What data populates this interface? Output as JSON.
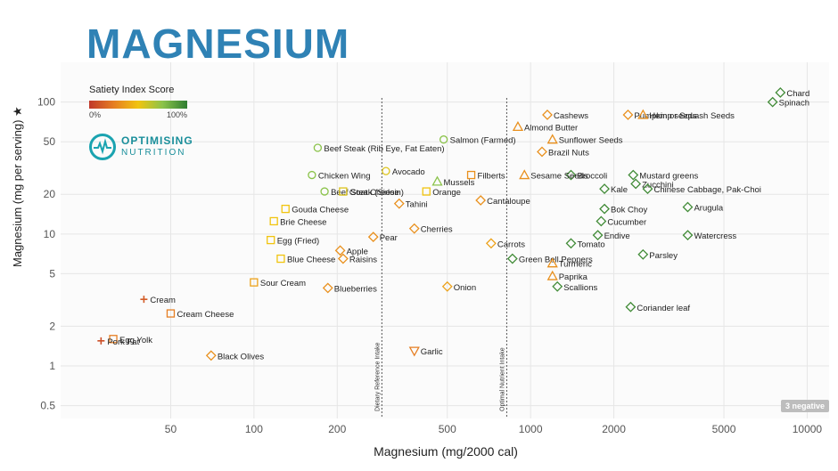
{
  "title": "MAGNESIUM",
  "legend": {
    "title": "Satiety Index Score",
    "min_label": "0%",
    "max_label": "100%"
  },
  "logo": {
    "line1": "OPTIMISING",
    "line2": "NUTRITION"
  },
  "badge": "3 negative",
  "colors": {
    "title": "#2f82b5",
    "grid": "#e6e6e6",
    "refline": "#555555",
    "teal": "#1aa3b0"
  },
  "chart_data": {
    "type": "scatter",
    "xlabel": "Magnesium (mg/2000 cal)",
    "ylabel": "Magnesium (mg per serving) ★",
    "x_scale": "log",
    "y_scale": "log",
    "xlim": [
      20,
      12000
    ],
    "ylim": [
      0.4,
      200
    ],
    "x_ticks": [
      50,
      100,
      200,
      500,
      1000,
      2000,
      5000,
      10000
    ],
    "x_tick_labels": [
      "50",
      "100",
      "200",
      "500",
      "1000",
      "2000",
      "5000",
      "10000"
    ],
    "y_ticks": [
      0.5,
      1,
      2,
      5,
      10,
      20,
      50,
      100
    ],
    "y_tick_labels": [
      "0.5",
      "1",
      "2",
      "5",
      "10",
      "20",
      "50",
      "100"
    ],
    "reference_lines": [
      {
        "x": 290,
        "label": "Dietary Reference Intake"
      },
      {
        "x": 820,
        "label": "Optimal Nutrient Intake"
      }
    ],
    "grid": true,
    "labeled_points": [
      {
        "name": "Chard",
        "x": 8000,
        "y": 118,
        "sat": 0.95,
        "shape": "diamond"
      },
      {
        "name": "Spinach",
        "x": 7500,
        "y": 100,
        "sat": 0.95,
        "shape": "diamond"
      },
      {
        "name": "Pumpkin or Squash Seeds",
        "x": 2250,
        "y": 80,
        "sat": 0.35,
        "shape": "diamond"
      },
      {
        "name": "Hemp seeds",
        "x": 2550,
        "y": 80,
        "sat": 0.35,
        "shape": "triangle"
      },
      {
        "name": "Cashews",
        "x": 1150,
        "y": 80,
        "sat": 0.35,
        "shape": "diamond"
      },
      {
        "name": "Almond Butter",
        "x": 900,
        "y": 65,
        "sat": 0.35,
        "shape": "triangle"
      },
      {
        "name": "Sunflower Seeds",
        "x": 1200,
        "y": 52,
        "sat": 0.35,
        "shape": "triangle"
      },
      {
        "name": "Salmon (Farmed)",
        "x": 485,
        "y": 52,
        "sat": 0.75,
        "shape": "circle"
      },
      {
        "name": "Beef Steak (Rib Eye, Fat Eaten)",
        "x": 170,
        "y": 45,
        "sat": 0.75,
        "shape": "circle"
      },
      {
        "name": "Brazil Nuts",
        "x": 1100,
        "y": 42,
        "sat": 0.35,
        "shape": "diamond"
      },
      {
        "name": "Mustard greens",
        "x": 2350,
        "y": 28,
        "sat": 0.95,
        "shape": "diamond"
      },
      {
        "name": "Broccoli",
        "x": 1400,
        "y": 28,
        "sat": 0.95,
        "shape": "diamond"
      },
      {
        "name": "Chicken Wing",
        "x": 162,
        "y": 28,
        "sat": 0.75,
        "shape": "circle"
      },
      {
        "name": "Avocado",
        "x": 300,
        "y": 30,
        "sat": 0.55,
        "shape": "circle"
      },
      {
        "name": "Filberts",
        "x": 610,
        "y": 28,
        "sat": 0.35,
        "shape": "square"
      },
      {
        "name": "Sesame Seeds",
        "x": 950,
        "y": 28,
        "sat": 0.35,
        "shape": "triangle"
      },
      {
        "name": "Zucchini",
        "x": 2400,
        "y": 24,
        "sat": 0.95,
        "shape": "diamond"
      },
      {
        "name": "Mussels",
        "x": 460,
        "y": 25,
        "sat": 0.75,
        "shape": "triangle"
      },
      {
        "name": "Kale",
        "x": 1850,
        "y": 22,
        "sat": 0.95,
        "shape": "diamond"
      },
      {
        "name": "Chinese Cabbage, Pak-Choi",
        "x": 2650,
        "y": 22,
        "sat": 0.95,
        "shape": "diamond"
      },
      {
        "name": "Beef Steak (Sirloin)",
        "x": 180,
        "y": 21,
        "sat": 0.75,
        "shape": "circle"
      },
      {
        "name": "Goat Cheese",
        "x": 210,
        "y": 21,
        "sat": 0.55,
        "shape": "square"
      },
      {
        "name": "Orange",
        "x": 420,
        "y": 21,
        "sat": 0.5,
        "shape": "square"
      },
      {
        "name": "Tahini",
        "x": 335,
        "y": 17,
        "sat": 0.35,
        "shape": "diamond"
      },
      {
        "name": "Cantaloupe",
        "x": 660,
        "y": 18,
        "sat": 0.35,
        "shape": "diamond"
      },
      {
        "name": "Gouda Cheese",
        "x": 130,
        "y": 15.5,
        "sat": 0.5,
        "shape": "square"
      },
      {
        "name": "Arugula",
        "x": 3700,
        "y": 16,
        "sat": 0.95,
        "shape": "diamond"
      },
      {
        "name": "Bok Choy",
        "x": 1850,
        "y": 15.5,
        "sat": 0.95,
        "shape": "diamond"
      },
      {
        "name": "Brie Cheese",
        "x": 118,
        "y": 12.5,
        "sat": 0.5,
        "shape": "square"
      },
      {
        "name": "Cucumber",
        "x": 1800,
        "y": 12.5,
        "sat": 0.95,
        "shape": "diamond"
      },
      {
        "name": "Cherries",
        "x": 380,
        "y": 11,
        "sat": 0.35,
        "shape": "diamond"
      },
      {
        "name": "Pear",
        "x": 270,
        "y": 9.5,
        "sat": 0.35,
        "shape": "diamond"
      },
      {
        "name": "Egg (Fried)",
        "x": 115,
        "y": 9,
        "sat": 0.5,
        "shape": "square"
      },
      {
        "name": "Endive",
        "x": 1750,
        "y": 9.8,
        "sat": 0.95,
        "shape": "diamond"
      },
      {
        "name": "Tomato",
        "x": 1400,
        "y": 8.5,
        "sat": 0.95,
        "shape": "diamond"
      },
      {
        "name": "Watercress",
        "x": 3700,
        "y": 9.8,
        "sat": 0.95,
        "shape": "diamond"
      },
      {
        "name": "Carrots",
        "x": 720,
        "y": 8.5,
        "sat": 0.4,
        "shape": "diamond"
      },
      {
        "name": "Apple",
        "x": 205,
        "y": 7.5,
        "sat": 0.35,
        "shape": "diamond"
      },
      {
        "name": "Blue Cheese",
        "x": 125,
        "y": 6.5,
        "sat": 0.5,
        "shape": "square"
      },
      {
        "name": "Raisins",
        "x": 210,
        "y": 6.5,
        "sat": 0.35,
        "shape": "diamond"
      },
      {
        "name": "Green Bell Peppers",
        "x": 860,
        "y": 6.5,
        "sat": 0.95,
        "shape": "diamond"
      },
      {
        "name": "Parsley",
        "x": 2550,
        "y": 7,
        "sat": 0.95,
        "shape": "diamond"
      },
      {
        "name": "Turmeric",
        "x": 1200,
        "y": 6,
        "sat": 0.35,
        "shape": "triangle"
      },
      {
        "name": "Paprika",
        "x": 1200,
        "y": 4.8,
        "sat": 0.35,
        "shape": "triangle"
      },
      {
        "name": "Sour Cream",
        "x": 100,
        "y": 4.3,
        "sat": 0.4,
        "shape": "square"
      },
      {
        "name": "Blueberries",
        "x": 185,
        "y": 3.9,
        "sat": 0.35,
        "shape": "diamond"
      },
      {
        "name": "Scallions",
        "x": 1250,
        "y": 4,
        "sat": 0.95,
        "shape": "diamond"
      },
      {
        "name": "Onion",
        "x": 500,
        "y": 4,
        "sat": 0.4,
        "shape": "diamond"
      },
      {
        "name": "Cream",
        "x": 40,
        "y": 3.2,
        "sat": 0.15,
        "shape": "plus"
      },
      {
        "name": "Cream Cheese",
        "x": 50,
        "y": 2.5,
        "sat": 0.3,
        "shape": "square"
      },
      {
        "name": "Coriander leaf",
        "x": 2300,
        "y": 2.8,
        "sat": 0.95,
        "shape": "diamond"
      },
      {
        "name": "Egg Yolk",
        "x": 31,
        "y": 1.6,
        "sat": 0.3,
        "shape": "square"
      },
      {
        "name": "Pork Fat",
        "x": 28,
        "y": 1.55,
        "sat": 0.1,
        "shape": "plus"
      },
      {
        "name": "Black Olives",
        "x": 70,
        "y": 1.2,
        "sat": 0.35,
        "shape": "diamond"
      },
      {
        "name": "Garlic",
        "x": 380,
        "y": 1.3,
        "sat": 0.3,
        "shape": "triangle-down"
      }
    ]
  }
}
